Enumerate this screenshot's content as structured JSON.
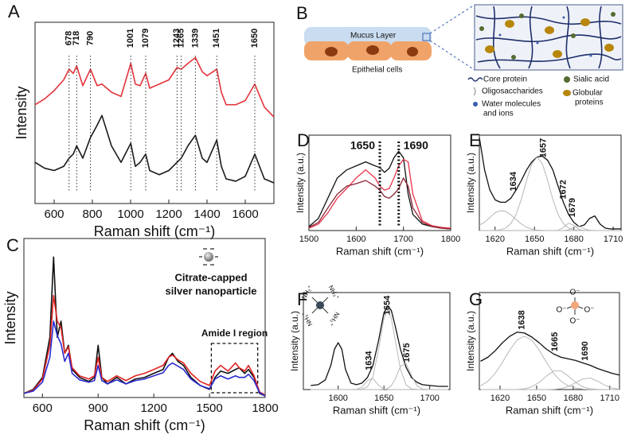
{
  "chart_data": [
    {
      "type": "line",
      "label": "A",
      "xlabel": "Raman shift (cm⁻¹)",
      "ylabel": "Intensity",
      "x": [
        500,
        550,
        600,
        650,
        678,
        700,
        718,
        750,
        790,
        825,
        850,
        900,
        950,
        1001,
        1025,
        1050,
        1079,
        1100,
        1150,
        1200,
        1243,
        1265,
        1300,
        1339,
        1375,
        1400,
        1451,
        1475,
        1500,
        1550,
        1600,
        1650,
        1700,
        1750
      ],
      "series": [
        {
          "color": "#e3323a",
          "values": [
            54.5,
            57.7,
            62.3,
            68.2,
            74.1,
            71.8,
            75.9,
            65,
            74.1,
            65,
            65.9,
            61.4,
            59.1,
            77.3,
            65.9,
            65,
            71.8,
            63.6,
            65.9,
            68.2,
            75,
            74.1,
            77.3,
            80.5,
            72.7,
            70.5,
            74.1,
            61.4,
            54.5,
            54.5,
            56.8,
            65.9,
            53.2,
            47.7
          ]
        },
        {
          "color": "#1a1a1a",
          "values": [
            22.7,
            19.5,
            18.2,
            20.5,
            25,
            27.3,
            31.8,
            25,
            36.4,
            43.2,
            48.6,
            31.8,
            22.7,
            33.2,
            20.5,
            22.7,
            27.3,
            18.2,
            15.9,
            18.2,
            22.7,
            25,
            31.8,
            37.7,
            25,
            22.7,
            35,
            20.5,
            13.6,
            12.3,
            15,
            27.3,
            13.6,
            11.4
          ]
        }
      ],
      "xlim": [
        500,
        1750
      ],
      "xticks": [
        600,
        800,
        1000,
        1200,
        1400,
        1600
      ],
      "ylim": [
        0,
        100
      ],
      "peaks": [
        678,
        718,
        790,
        1001,
        1079,
        1243,
        1265,
        1339,
        1451,
        1650
      ]
    },
    {
      "type": "line",
      "label": "C",
      "xlabel": "Raman shift (cm⁻¹)",
      "ylabel": "Intensity",
      "x": [
        500,
        550,
        600,
        640,
        660,
        680,
        700,
        720,
        740,
        760,
        800,
        850,
        880,
        900,
        920,
        950,
        1000,
        1050,
        1100,
        1150,
        1200,
        1250,
        1280,
        1300,
        1330,
        1360,
        1400,
        1450,
        1500,
        1530,
        1560,
        1600,
        1640,
        1660,
        1690,
        1710,
        1740,
        1770,
        1800
      ],
      "series": [
        {
          "color": "#111111",
          "values": [
            2.8,
            5.6,
            13.9,
            41.7,
            97.2,
            41.7,
            52.8,
            30.6,
            36.1,
            19.4,
            13.9,
            11.1,
            13.9,
            36.1,
            13.9,
            9.4,
            13.9,
            9.4,
            12.8,
            13.9,
            16.7,
            19.4,
            27.8,
            30.6,
            25,
            22.2,
            13.9,
            8.3,
            5.6,
            13.9,
            18.3,
            16.7,
            19.4,
            20.6,
            16.7,
            19.4,
            13.9,
            2.8,
            1.1
          ]
        },
        {
          "color": "#e02424",
          "values": [
            2.8,
            5,
            12.8,
            36.1,
            70.6,
            52.8,
            48.3,
            30.6,
            35,
            20.6,
            15,
            12.8,
            15,
            27.8,
            13.9,
            11.1,
            15,
            11.7,
            15,
            16.7,
            19.4,
            22.2,
            27.8,
            29.4,
            26.1,
            23.9,
            16.7,
            11.1,
            8.3,
            18.3,
            22.2,
            18.3,
            23.9,
            20.6,
            18.3,
            22.2,
            15,
            3.9,
            1.7
          ]
        },
        {
          "color": "#2b2bd0",
          "values": [
            2.8,
            4.4,
            10.6,
            27.8,
            52.8,
            42.8,
            37.2,
            25,
            30.6,
            16.7,
            12.2,
            10.6,
            11.7,
            22.2,
            11.7,
            9.4,
            12.2,
            9.4,
            11.7,
            12.8,
            15,
            17.2,
            22.2,
            23.9,
            21.7,
            19.4,
            12.8,
            8.3,
            6.1,
            12.8,
            15,
            12.8,
            15,
            13.9,
            13.9,
            16.1,
            11.7,
            3.3,
            1.1
          ]
        }
      ],
      "xlim": [
        500,
        1800
      ],
      "xticks": [
        600,
        900,
        1200,
        1500,
        1800
      ],
      "ylim": [
        0,
        110
      ],
      "annotation": [
        "Citrate-capped",
        "silver nanoparticle"
      ],
      "region": {
        "label": "Amide I region",
        "xlim": [
          1510,
          1760
        ]
      }
    },
    {
      "type": "line",
      "label": "D",
      "xlabel": "Raman shift (cm⁻¹)",
      "ylabel": "Intensity (a.u.)",
      "x": [
        1500,
        1520,
        1540,
        1560,
        1580,
        1600,
        1620,
        1640,
        1650,
        1660,
        1670,
        1680,
        1690,
        1700,
        1710,
        1720,
        1740,
        1760,
        1780,
        1800
      ],
      "series": [
        {
          "color": "#111111",
          "values": [
            4.2,
            12.7,
            33.9,
            55.1,
            63.6,
            67.8,
            72,
            67.8,
            66.1,
            61,
            65.3,
            76.3,
            83.1,
            76.3,
            38.1,
            16.9,
            6.8,
            4.2,
            2.5,
            1.7
          ]
        },
        {
          "color": "#e8344a",
          "values": [
            2.5,
            6.8,
            18.6,
            33.9,
            44.1,
            55.1,
            63.6,
            55.1,
            46.6,
            42.4,
            44.1,
            55.1,
            67.8,
            74.6,
            72,
            38.1,
            10.2,
            5.1,
            3.4,
            2.5
          ]
        },
        {
          "color": "#8b2232",
          "values": [
            3.4,
            8.5,
            23.7,
            38.1,
            46.6,
            49.2,
            52.5,
            46.6,
            42.4,
            35.6,
            33.9,
            38.1,
            44.1,
            55.1,
            46.6,
            23.7,
            8.5,
            4.2,
            2.5,
            1.7
          ]
        }
      ],
      "xlim": [
        1500,
        1800
      ],
      "xticks": [
        1500,
        1600,
        1700,
        1800
      ],
      "ylim": [
        0,
        100
      ],
      "peaks": [
        1650,
        1690
      ]
    },
    {
      "type": "line",
      "label": "E",
      "xlabel": "Raman shift (cm⁻¹)",
      "ylabel": "Intensity (a.u.)",
      "x": [
        1608,
        1612,
        1616,
        1620,
        1624,
        1628,
        1632,
        1636,
        1640,
        1644,
        1648,
        1652,
        1656,
        1660,
        1664,
        1668,
        1672,
        1676,
        1680,
        1684,
        1688,
        1692,
        1696,
        1700,
        1704,
        1708,
        1712,
        1716
      ],
      "series": [
        {
          "color": "#111111",
          "values": [
            97.5,
            63.6,
            42.4,
            32.2,
            29.7,
            29.7,
            33.9,
            42.4,
            52.5,
            63.6,
            72,
            77.1,
            78,
            73.7,
            63.6,
            46.6,
            29.7,
            16.9,
            8.5,
            4.2,
            5.9,
            12.7,
            15.3,
            6.8,
            2.5,
            1.7,
            1.7,
            1.7
          ]
        },
        {
          "color": "#b0b0b0",
          "values": [
            5.7,
            8.8,
            13.7,
            18.7,
            20.9,
            20.1,
            16.5,
            11.5,
            6.9,
            3.4,
            1.4,
            0.5,
            0.2,
            0,
            0,
            0,
            0,
            0,
            0,
            0,
            0,
            0,
            0,
            0,
            0,
            0,
            0,
            0
          ]
        },
        {
          "color": "#b0b0b0",
          "values": [
            0,
            0,
            0,
            0.2,
            0.8,
            2.6,
            7.3,
            16.9,
            32.8,
            52.7,
            70.1,
            77,
            70.1,
            52.7,
            32.8,
            16.9,
            7.3,
            2.6,
            0.8,
            0.2,
            0,
            0,
            0,
            0,
            0,
            0,
            0,
            0
          ]
        },
        {
          "color": "#b0b0b0",
          "values": [
            0,
            0,
            0,
            0,
            0,
            0,
            0,
            0,
            0,
            0,
            0,
            0,
            0,
            0,
            0,
            0.3,
            3.1,
            7.7,
            5.6,
            1.1,
            0,
            0,
            0,
            0,
            0,
            0,
            0,
            0
          ]
        },
        {
          "color": "#b0b0b0",
          "values": [
            0,
            0,
            0,
            0,
            0,
            0,
            0,
            0,
            0,
            0,
            0,
            0,
            0,
            0,
            0,
            0,
            0,
            0.7,
            3.5,
            4.8,
            1.8,
            0.2,
            0,
            0,
            0,
            0,
            0,
            0
          ]
        }
      ],
      "xlim": [
        1608,
        1716
      ],
      "xticks": [
        1620,
        1650,
        1680,
        1710
      ],
      "ylim": [
        0,
        100
      ],
      "peak_labels": [
        1634,
        1657,
        1672,
        1679
      ]
    },
    {
      "type": "line",
      "label": "F",
      "xlabel": "Raman shift (cm⁻¹)",
      "ylabel": "Intensity (a.u.)",
      "x": [
        1570,
        1578,
        1586,
        1592,
        1596,
        1600,
        1604,
        1608,
        1614,
        1620,
        1626,
        1632,
        1638,
        1644,
        1650,
        1654,
        1658,
        1662,
        1668,
        1674,
        1680,
        1686,
        1692,
        1700,
        1710,
        1720
      ],
      "series": [
        {
          "color": "#111111",
          "values": [
            4.2,
            5,
            10,
            25,
            41.7,
            48.3,
            41.7,
            20.8,
            6.7,
            5,
            6.7,
            12.5,
            25,
            50,
            79.2,
            85.8,
            81.7,
            66.7,
            41.7,
            23.3,
            12.5,
            7.5,
            5,
            4.2,
            3.3,
            3.3
          ]
        },
        {
          "color": "#b0b0b0",
          "values": [
            0,
            0,
            0,
            0,
            0,
            0,
            0,
            0,
            0,
            0.2,
            2.5,
            9.3,
            11.3,
            4.4,
            0.6,
            0.1,
            0,
            0,
            0,
            0,
            0,
            0,
            0,
            0,
            0,
            0
          ]
        },
        {
          "color": "#b0b0b0",
          "values": [
            0,
            0,
            0,
            0,
            0,
            0,
            0,
            0,
            0,
            0,
            0.4,
            2.8,
            13.5,
            40.8,
            73.4,
            82,
            73.4,
            52.6,
            21.1,
            5.1,
            0.7,
            0.1,
            0,
            0,
            0,
            0
          ]
        },
        {
          "color": "#b0b0b0",
          "values": [
            0,
            0,
            0,
            0,
            0,
            0,
            0,
            0,
            0,
            0,
            0,
            0,
            0,
            0,
            0.2,
            1.1,
            4,
            10.3,
            23.8,
            26.9,
            14.8,
            4,
            0.5,
            0,
            0,
            0
          ]
        }
      ],
      "xlim": [
        1562,
        1722
      ],
      "xticks": [
        1600,
        1650,
        1700
      ],
      "ylim": [
        0,
        100
      ],
      "peak_labels": [
        1634,
        1654,
        1675
      ],
      "icon_labels": [
        "NH₃⁺",
        "NH₃⁺",
        "NH₃⁺",
        "NH₃⁺"
      ]
    },
    {
      "type": "line",
      "label": "G",
      "xlabel": "Raman shift (cm⁻¹)",
      "ylabel": "Intensity (a.u.)",
      "x": [
        1604,
        1610,
        1616,
        1622,
        1628,
        1634,
        1640,
        1646,
        1652,
        1658,
        1664,
        1670,
        1676,
        1682,
        1688,
        1694,
        1700,
        1706,
        1712,
        1718
      ],
      "series": [
        {
          "color": "#111111",
          "values": [
            29.2,
            33.3,
            40,
            48.3,
            55,
            59.2,
            58.3,
            54.2,
            48.3,
            41.7,
            36.7,
            33.3,
            31.7,
            30,
            27.5,
            25,
            21.7,
            19.2,
            16.7,
            15
          ]
        },
        {
          "color": "#b0b0b0",
          "values": [
            3.8,
            8.6,
            16.7,
            28.2,
            40.9,
            51.1,
            55,
            51.1,
            40.9,
            28.2,
            16.7,
            8.6,
            3.8,
            1.5,
            0.5,
            0.1,
            0,
            0,
            0,
            0
          ]
        },
        {
          "color": "#b0b0b0",
          "values": [
            0,
            0,
            0,
            0,
            0,
            0,
            0.8,
            2.8,
            7.4,
            13.9,
            19.2,
            19.2,
            13.9,
            7.4,
            2.8,
            0.8,
            0.2,
            0,
            0,
            0
          ]
        },
        {
          "color": "#b0b0b0",
          "values": [
            0,
            0,
            0,
            0,
            0,
            0,
            0,
            0,
            0,
            0,
            0.2,
            1,
            3.2,
            7.2,
            11,
            11.8,
            8.7,
            4.4,
            1.6,
            0.4
          ]
        }
      ],
      "xlim": [
        1603,
        1718
      ],
      "xticks": [
        1620,
        1650,
        1680,
        1710
      ],
      "ylim": [
        0,
        100
      ],
      "peak_labels": [
        1638,
        1665,
        1690
      ],
      "icon_labels": [
        "O⁻",
        "O⁻",
        "O⁻",
        "O⁻"
      ]
    }
  ],
  "diagram": {
    "label": "B",
    "mucus": "Mucus Layer",
    "cells": "Epithelial cells",
    "legend": [
      [
        "Core protein"
      ],
      [
        "Oligosaccharides"
      ],
      [
        "Water molecules",
        "and ions"
      ],
      [
        "Sialic acid"
      ],
      [
        "Globular",
        "proteins"
      ]
    ]
  }
}
